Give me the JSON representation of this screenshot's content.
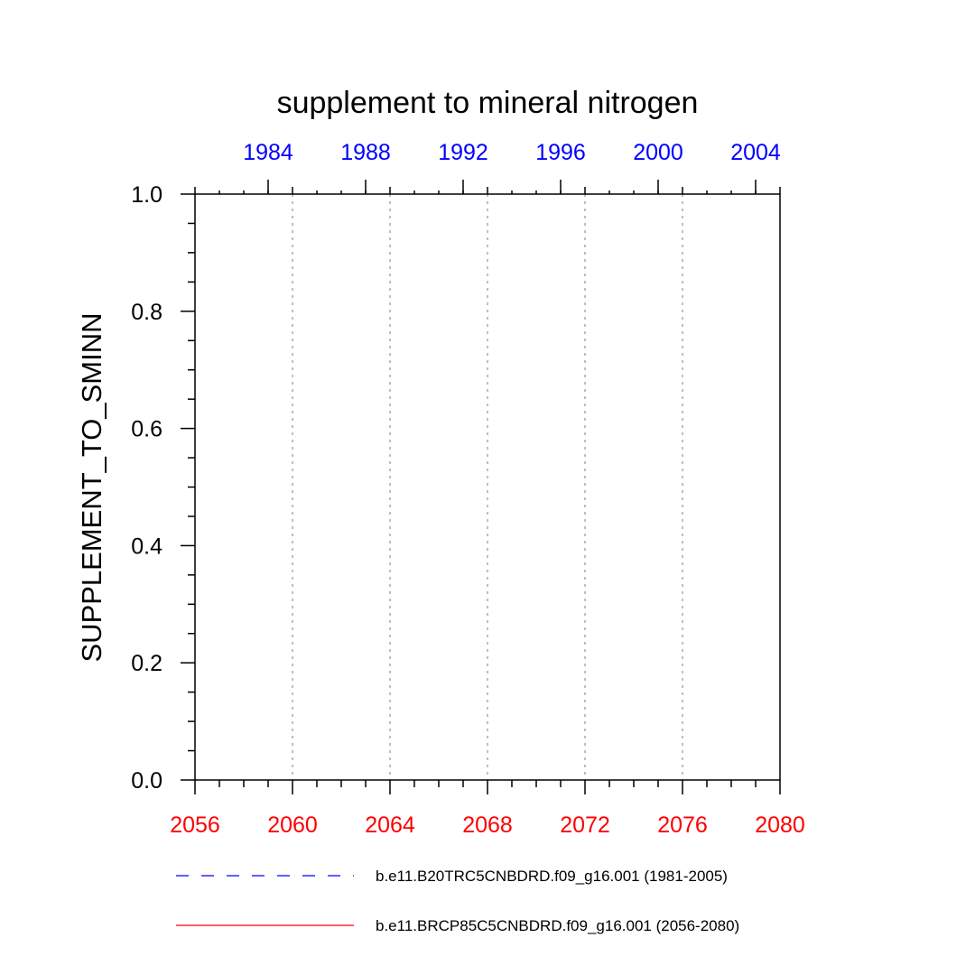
{
  "chart_data": {
    "type": "line",
    "title": "supplement to mineral nitrogen",
    "ylabel": "SUPPLEMENT_TO_SMINN",
    "xlabel": "",
    "ylim": [
      0,
      1
    ],
    "y_ticks": [
      "0.0",
      "0.2",
      "0.4",
      "0.6",
      "0.8",
      "1.0"
    ],
    "x_bottom": {
      "range": [
        2056,
        2080
      ],
      "ticks": [
        "2056",
        "2060",
        "2064",
        "2068",
        "2072",
        "2076",
        "2080"
      ],
      "color": "#ff0000"
    },
    "x_top": {
      "range": [
        1981,
        2005
      ],
      "ticks": [
        "1984",
        "1988",
        "1992",
        "1996",
        "2000",
        "2004"
      ],
      "color": "#0000ff"
    },
    "grid": "vertical dotted at major bottom ticks",
    "series": [
      {
        "name": "b.e11.B20TRC5CNBDRD.f09_g16.001 (1981-2005)",
        "color": "#0000ff",
        "dash": "dashed",
        "values": []
      },
      {
        "name": "b.e11.BRCP85C5CNBDRD.f09_g16.001 (2056-2080)",
        "color": "#ff0000",
        "dash": "solid",
        "values": []
      }
    ],
    "legend_position": "bottom"
  }
}
